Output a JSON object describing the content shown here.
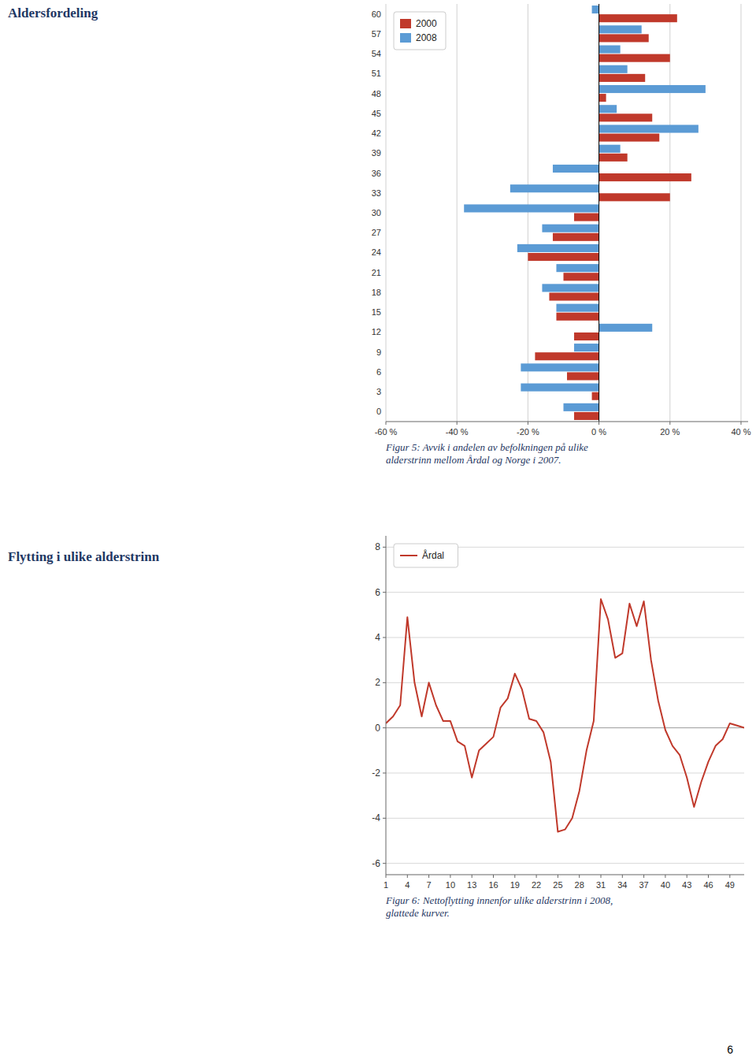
{
  "title": "Aldersfordeling",
  "subtitle": "Flytting i ulike alderstrinn",
  "annotations": [
    "6"
  ],
  "chart_data": [
    {
      "type": "bar",
      "orientation": "horizontal",
      "title": "Figur 5: Avvik i andelen av befolkningen på ulike\nalderstrinn mellom Årdal og Norge i 2007.",
      "categories": [
        "60",
        "57",
        "54",
        "51",
        "48",
        "45",
        "42",
        "39",
        "36",
        "33",
        "30",
        "27",
        "24",
        "21",
        "18",
        "15",
        "12",
        "9",
        "6",
        "3",
        "0"
      ],
      "series": [
        {
          "name": "2000",
          "color": "#c0392b",
          "values": [
            22,
            14,
            20,
            13,
            2,
            15,
            17,
            8,
            26,
            20,
            -7,
            -13,
            -20,
            -10,
            -14,
            -12,
            -7,
            -18,
            -9,
            -2,
            -7
          ]
        },
        {
          "name": "2008",
          "color": "#5b9bd5",
          "values": [
            -2,
            12,
            6,
            8,
            30,
            5,
            28,
            6,
            -13,
            -25,
            -38,
            -16,
            -23,
            -12,
            -16,
            -12,
            15,
            -7,
            -22,
            -22,
            -10
          ]
        }
      ],
      "xlim": [
        -60,
        42
      ],
      "xticks": [
        {
          "value": -60,
          "label": "-60 %"
        },
        {
          "value": -40,
          "label": "-40 %"
        },
        {
          "value": -20,
          "label": "-20 %"
        },
        {
          "value": 0,
          "label": "0 %"
        },
        {
          "value": 20,
          "label": "20 %"
        },
        {
          "value": 40,
          "label": "40 %"
        }
      ],
      "grid": true,
      "legend": "upper left"
    },
    {
      "type": "line",
      "title": "Figur 6: Nettoflytting innenfor ulike alderstrinn i 2008,\nglattede kurver.",
      "x": [
        1,
        2,
        3,
        4,
        5,
        6,
        7,
        8,
        9,
        10,
        11,
        12,
        13,
        14,
        15,
        16,
        17,
        18,
        19,
        20,
        21,
        22,
        23,
        24,
        25,
        26,
        27,
        28,
        29,
        30,
        31,
        32,
        33,
        34,
        35,
        36,
        37,
        38,
        39,
        40,
        41,
        42,
        43,
        44,
        45,
        46,
        47,
        48,
        49,
        50,
        51
      ],
      "series": [
        {
          "name": "Årdal",
          "color": "#c0392b",
          "values": [
            0.2,
            0.5,
            1.0,
            4.9,
            2.0,
            0.5,
            2.0,
            1.0,
            0.3,
            0.3,
            -0.6,
            -0.8,
            -2.2,
            -1.0,
            -0.7,
            -0.4,
            0.9,
            1.3,
            2.4,
            1.7,
            0.4,
            0.3,
            -0.2,
            -1.5,
            -4.6,
            -4.5,
            -4.0,
            -2.8,
            -1.0,
            0.3,
            5.7,
            4.8,
            3.1,
            3.3,
            5.5,
            4.5,
            5.6,
            3.0,
            1.2,
            -0.1,
            -0.8,
            -1.2,
            -2.2,
            -3.5,
            -2.4,
            -1.5,
            -0.8,
            -0.5,
            0.2,
            0.1,
            0.0
          ]
        }
      ],
      "xlim": [
        1,
        51
      ],
      "xticks": [
        1,
        4,
        7,
        10,
        13,
        16,
        19,
        22,
        25,
        28,
        31,
        34,
        37,
        40,
        43,
        46,
        49
      ],
      "ylim": [
        -6.5,
        8.5
      ],
      "yticks": [
        -6,
        -4,
        -2,
        0,
        2,
        4,
        6,
        8
      ],
      "grid": true,
      "legend": "upper left"
    }
  ]
}
